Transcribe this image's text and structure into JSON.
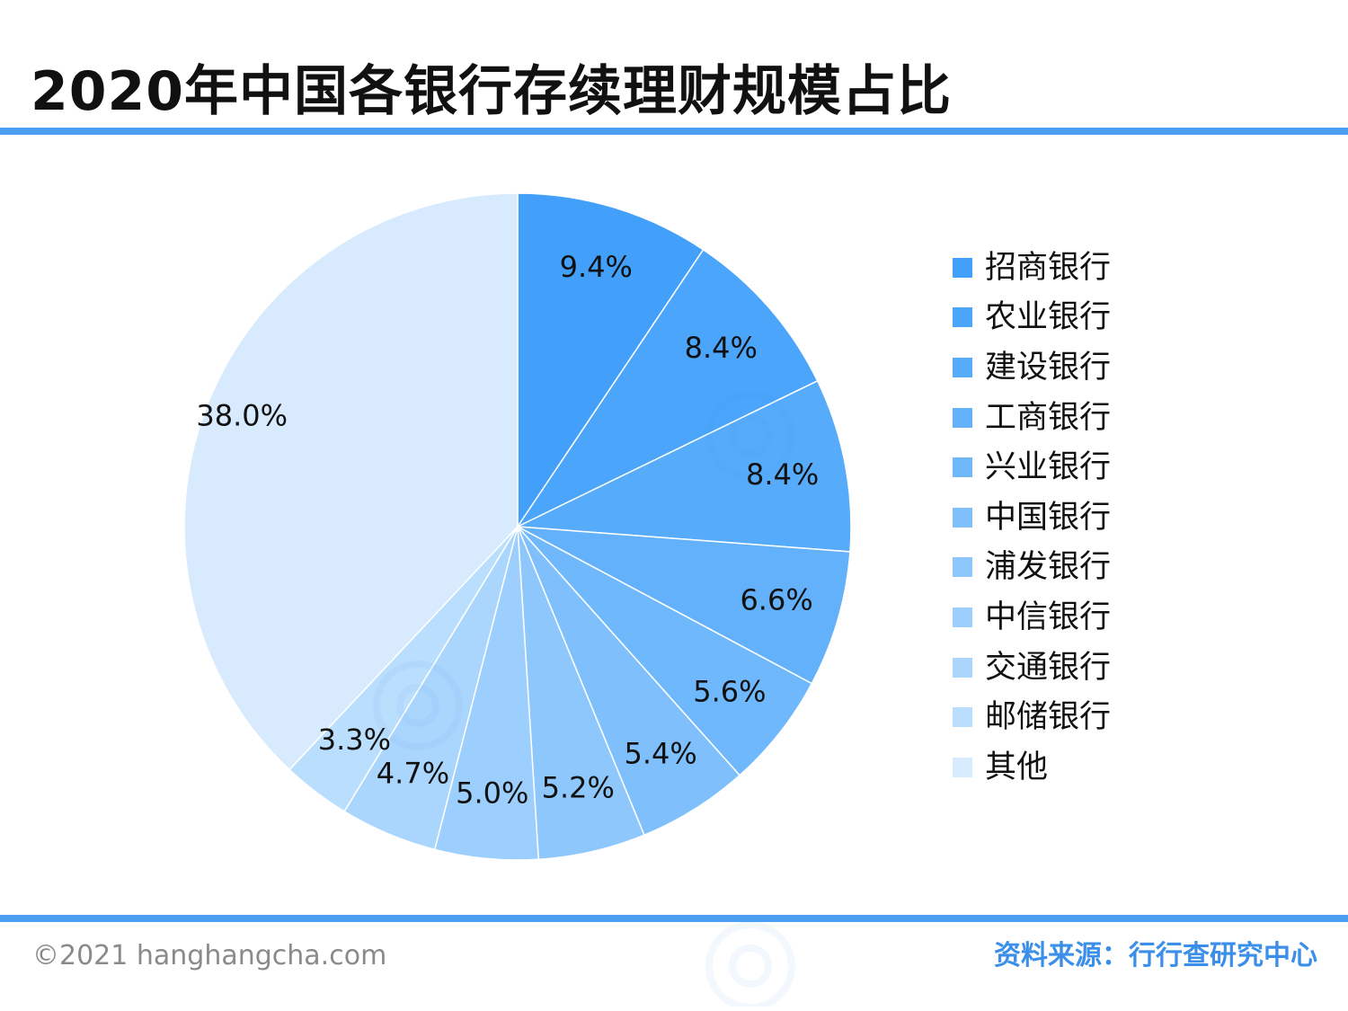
{
  "title": "2020年中国各银行存续理财规模占比",
  "footer": {
    "copyright": "©2021 hanghangcha.com",
    "source": "资料来源：行行查研究中心"
  },
  "colors": {
    "accent": "#4a9ff5",
    "source_text": "#3b8fe8",
    "label_text": "#111111"
  },
  "watermark_icon": "hanghangcha-logo-icon",
  "chart_data": {
    "type": "pie",
    "title": "2020年中国各银行存续理财规模占比",
    "unit": "%",
    "legend_position": "right",
    "start_angle": "top (12 o'clock), clockwise",
    "slices": [
      {
        "label": "招商银行",
        "value": 9.4,
        "display": "9.4%",
        "color": "#42a0fb"
      },
      {
        "label": "农业银行",
        "value": 8.4,
        "display": "8.4%",
        "color": "#4aa5fb"
      },
      {
        "label": "建设银行",
        "value": 8.4,
        "display": "8.4%",
        "color": "#56abfb"
      },
      {
        "label": "工商银行",
        "value": 6.6,
        "display": "6.6%",
        "color": "#63b1fb"
      },
      {
        "label": "兴业银行",
        "value": 5.6,
        "display": "5.6%",
        "color": "#70b8fc"
      },
      {
        "label": "中国银行",
        "value": 5.4,
        "display": "5.4%",
        "color": "#7fc0fc"
      },
      {
        "label": "浦发银行",
        "value": 5.2,
        "display": "5.2%",
        "color": "#8dc7fc"
      },
      {
        "label": "中信银行",
        "value": 5.0,
        "display": "5.0%",
        "color": "#9ccffd"
      },
      {
        "label": "交通银行",
        "value": 4.7,
        "display": "4.7%",
        "color": "#aad6fd"
      },
      {
        "label": "邮储银行",
        "value": 3.3,
        "display": "3.3%",
        "color": "#badefd"
      },
      {
        "label": "其他",
        "value": 38.0,
        "display": "38.0%",
        "color": "#d8eafd"
      }
    ]
  }
}
